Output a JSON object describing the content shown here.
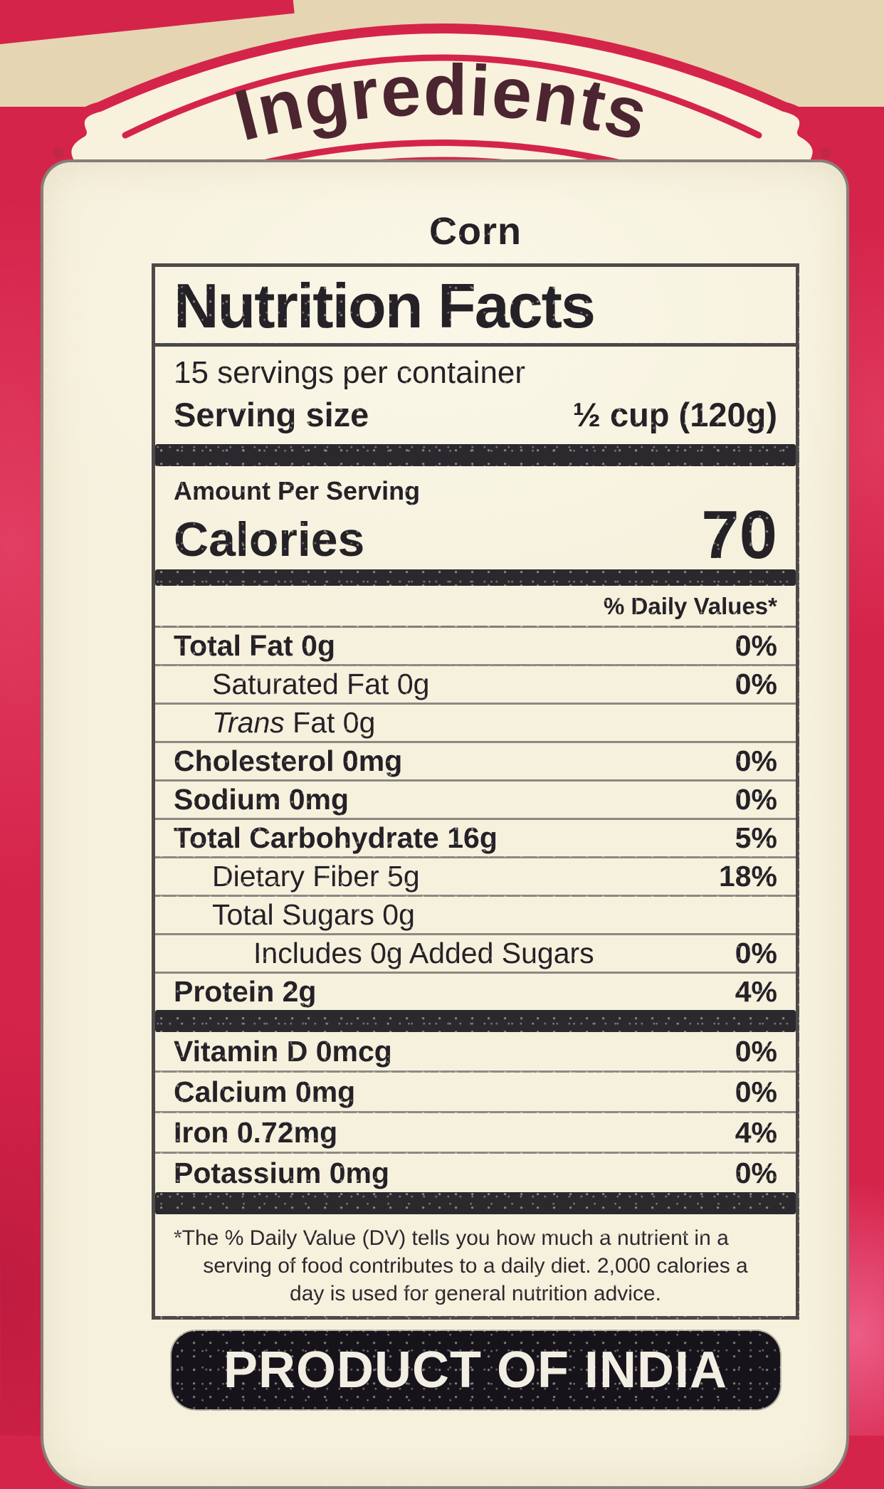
{
  "colors": {
    "bag_red": "#d5244a",
    "label_cream": "#f6f1dd",
    "banner_text_maroon": "#4b2530",
    "print_ink": "#242127",
    "origin_box_black": "#17131a"
  },
  "banner": {
    "title": "Ingredients"
  },
  "product": {
    "name": "Corn"
  },
  "nutrition": {
    "title": "Nutrition Facts",
    "servings_per_container": "15 servings per container",
    "serving_size_label": "Serving size",
    "serving_size_value": "½ cup (120g)",
    "amount_per_serving": "Amount Per Serving",
    "calories_label": "Calories",
    "calories_value": "70",
    "daily_value_header": "% Daily Values*",
    "main_rows": [
      {
        "label": "Total Fat 0g",
        "value": "0%",
        "indent": 0,
        "bold": true
      },
      {
        "label": "Saturated Fat 0g",
        "value": "0%",
        "indent": 1,
        "bold": false
      },
      {
        "label": "Trans Fat 0g",
        "value": "",
        "indent": 1,
        "bold": false,
        "italic_first_word": true
      },
      {
        "label": "Cholesterol 0mg",
        "value": "0%",
        "indent": 0,
        "bold": true
      },
      {
        "label": "Sodium 0mg",
        "value": "0%",
        "indent": 0,
        "bold": true
      },
      {
        "label": "Total Carbohydrate 16g",
        "value": "5%",
        "indent": 0,
        "bold": true
      },
      {
        "label": "Dietary Fiber 5g",
        "value": "18%",
        "indent": 1,
        "bold": false
      },
      {
        "label": "Total Sugars 0g",
        "value": "",
        "indent": 1,
        "bold": false
      },
      {
        "label": "Includes 0g Added Sugars",
        "value": "0%",
        "indent": 2,
        "bold": false
      },
      {
        "label": "Protein 2g",
        "value": "4%",
        "indent": 0,
        "bold": true
      }
    ],
    "vitamin_rows": [
      {
        "label": "Vitamin D 0mcg",
        "value": "0%",
        "indent": 0,
        "bold": true
      },
      {
        "label": "Calcium 0mg",
        "value": "0%",
        "indent": 0,
        "bold": true
      },
      {
        "label": "Iron 0.72mg",
        "value": "4%",
        "indent": 0,
        "bold": true
      },
      {
        "label": "Potassium 0mg",
        "value": "0%",
        "indent": 0,
        "bold": true
      }
    ],
    "footnote_lines": [
      "*The % Daily Value (DV) tells you how much a nutrient in a",
      "serving of food contributes to a daily diet. 2,000 calories a",
      "day is used for general nutrition advice."
    ]
  },
  "origin": {
    "label": "PRODUCT OF INDIA"
  }
}
